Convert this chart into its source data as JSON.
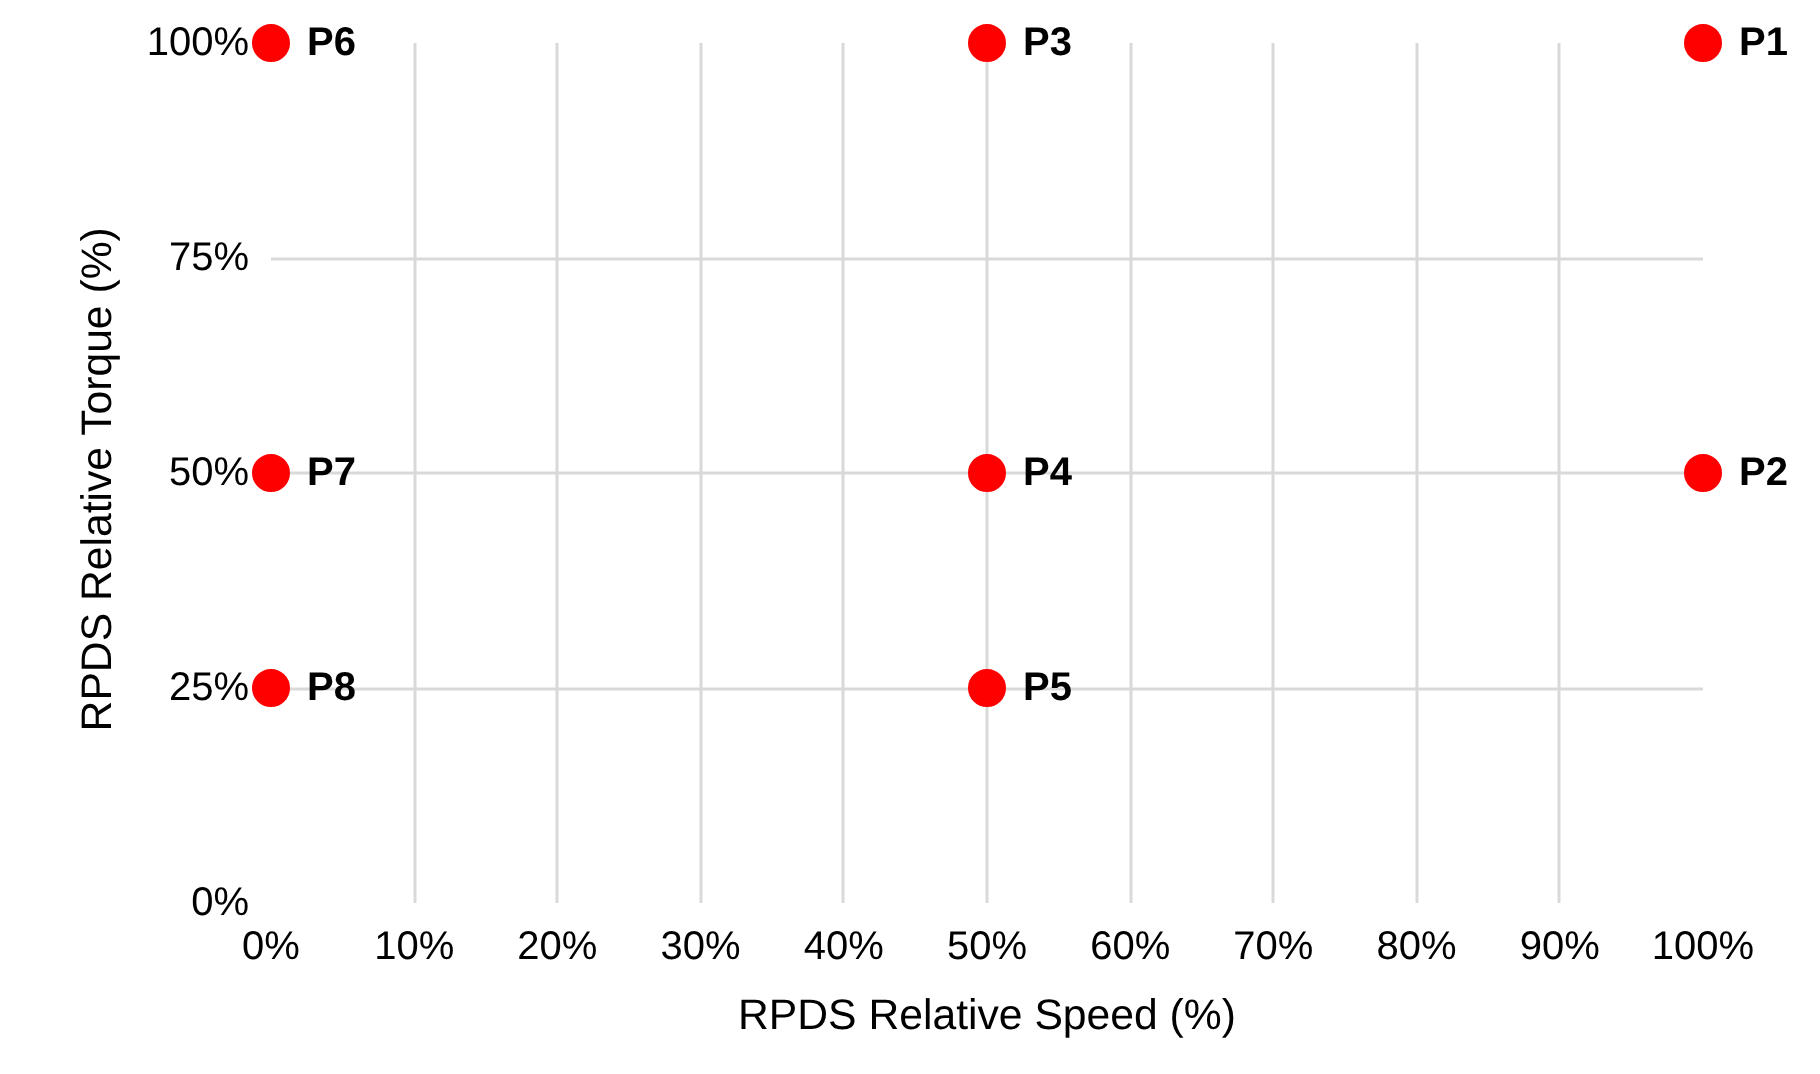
{
  "chart_data": {
    "type": "scatter",
    "xlabel": "RPDS Relative Speed (%)",
    "ylabel": "RPDS Relative Torque  (%)",
    "x": [
      100,
      100,
      50,
      50,
      50,
      0,
      0,
      0
    ],
    "series": [
      {
        "color": "#ff0000",
        "values": [
          100,
          50,
          100,
          50,
          25,
          100,
          50,
          25
        ]
      }
    ],
    "marker": "circle",
    "grid": true,
    "xlim": [
      0,
      100
    ],
    "ylim": [
      0,
      100
    ],
    "xticks": [
      {
        "value": 0,
        "label": "0%"
      },
      {
        "value": 10,
        "label": "10%"
      },
      {
        "value": 20,
        "label": "20%"
      },
      {
        "value": 30,
        "label": "30%"
      },
      {
        "value": 40,
        "label": "40%"
      },
      {
        "value": 50,
        "label": "50%"
      },
      {
        "value": 60,
        "label": "60%"
      },
      {
        "value": 70,
        "label": "70%"
      },
      {
        "value": 80,
        "label": "80%"
      },
      {
        "value": 90,
        "label": "90%"
      },
      {
        "value": 100,
        "label": "100%"
      }
    ],
    "yticks": [
      {
        "value": 0,
        "label": "0%"
      },
      {
        "value": 25,
        "label": "25%"
      },
      {
        "value": 50,
        "label": "50%"
      },
      {
        "value": 75,
        "label": "75%"
      },
      {
        "value": 100,
        "label": "100%"
      }
    ],
    "annotations": [
      {
        "text": "P1",
        "x": 100,
        "y": 100
      },
      {
        "text": "P2",
        "x": 100,
        "y": 50
      },
      {
        "text": "P3",
        "x": 50,
        "y": 100
      },
      {
        "text": "P4",
        "x": 50,
        "y": 50
      },
      {
        "text": "P5",
        "x": 50,
        "y": 25
      },
      {
        "text": "P6",
        "x": 0,
        "y": 100
      },
      {
        "text": "P7",
        "x": 0,
        "y": 50
      },
      {
        "text": "P8",
        "x": 0,
        "y": 25
      }
    ]
  }
}
